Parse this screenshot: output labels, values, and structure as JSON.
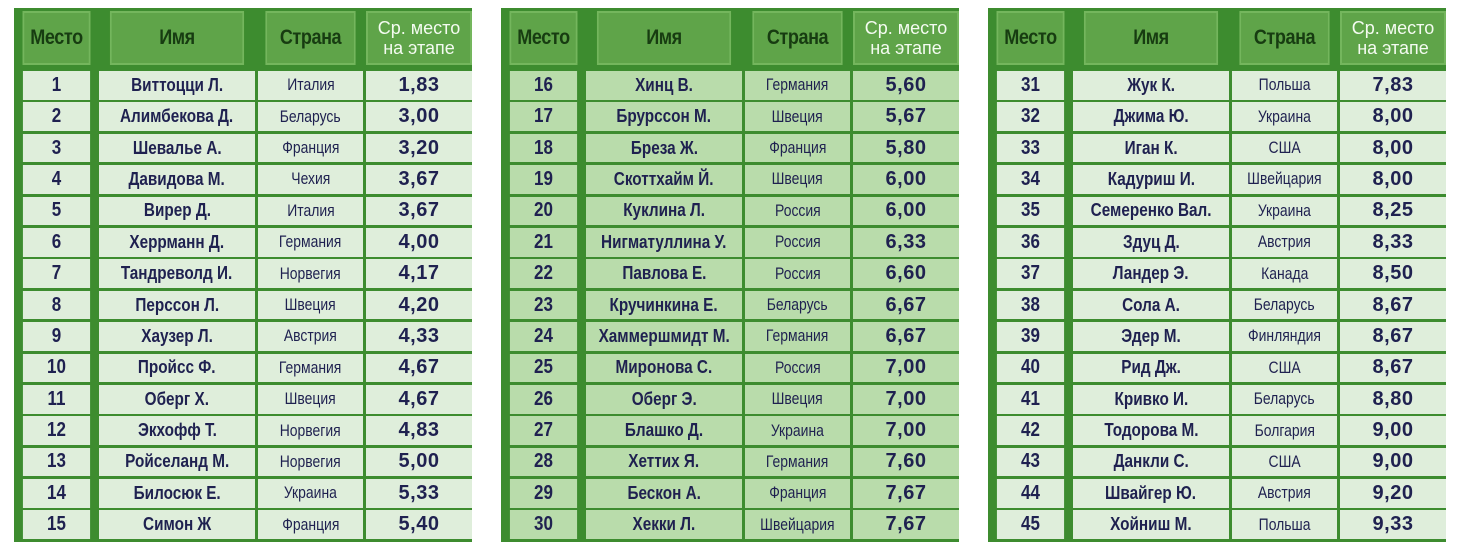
{
  "headers": {
    "place": "Место",
    "name": "Имя",
    "country": "Страна",
    "avg": "Ср. место\nна этапе"
  },
  "colors": {
    "border": "#3d8c2f",
    "header_bg": "#5fa449",
    "row_bg_light": "#dfeedb",
    "row_bg_mid": "#b9dcab",
    "text": "#1f2150"
  },
  "tables": [
    {
      "rows": [
        {
          "place": "1",
          "name": "Виттоцци Л.",
          "country": "Италия",
          "avg": "1,83"
        },
        {
          "place": "2",
          "name": "Алимбекова Д.",
          "country": "Беларусь",
          "avg": "3,00"
        },
        {
          "place": "3",
          "name": "Шевалье А.",
          "country": "Франция",
          "avg": "3,20"
        },
        {
          "place": "4",
          "name": "Давидова М.",
          "country": "Чехия",
          "avg": "3,67"
        },
        {
          "place": "5",
          "name": "Вирер Д.",
          "country": "Италия",
          "avg": "3,67"
        },
        {
          "place": "6",
          "name": "Херрманн Д.",
          "country": "Германия",
          "avg": "4,00"
        },
        {
          "place": "7",
          "name": "Тандреволд И.",
          "country": "Норвегия",
          "avg": "4,17"
        },
        {
          "place": "8",
          "name": "Перссон Л.",
          "country": "Швеция",
          "avg": "4,20"
        },
        {
          "place": "9",
          "name": "Хаузер Л.",
          "country": "Австрия",
          "avg": "4,33"
        },
        {
          "place": "10",
          "name": "Пройсс Ф.",
          "country": "Германия",
          "avg": "4,67"
        },
        {
          "place": "11",
          "name": "Оберг Х.",
          "country": "Швеция",
          "avg": "4,67"
        },
        {
          "place": "12",
          "name": "Экхофф Т.",
          "country": "Норвегия",
          "avg": "4,83"
        },
        {
          "place": "13",
          "name": "Ройселанд М.",
          "country": "Норвегия",
          "avg": "5,00"
        },
        {
          "place": "14",
          "name": "Билосюк Е.",
          "country": "Украина",
          "avg": "5,33"
        },
        {
          "place": "15",
          "name": "Симон Ж",
          "country": "Франция",
          "avg": "5,40"
        }
      ]
    },
    {
      "rows": [
        {
          "place": "16",
          "name": "Хинц В.",
          "country": "Германия",
          "avg": "5,60"
        },
        {
          "place": "17",
          "name": "Брурссон М.",
          "country": "Швеция",
          "avg": "5,67"
        },
        {
          "place": "18",
          "name": "Бреза Ж.",
          "country": "Франция",
          "avg": "5,80"
        },
        {
          "place": "19",
          "name": "Скоттхайм Й.",
          "country": "Швеция",
          "avg": "6,00"
        },
        {
          "place": "20",
          "name": "Куклина Л.",
          "country": "Россия",
          "avg": "6,00"
        },
        {
          "place": "21",
          "name": "Нигматуллина У.",
          "country": "Россия",
          "avg": "6,33"
        },
        {
          "place": "22",
          "name": "Павлова Е.",
          "country": "Россия",
          "avg": "6,60"
        },
        {
          "place": "23",
          "name": "Кручинкина Е.",
          "country": "Беларусь",
          "avg": "6,67"
        },
        {
          "place": "24",
          "name": "Хаммершмидт М.",
          "country": "Германия",
          "avg": "6,67"
        },
        {
          "place": "25",
          "name": "Миронова С.",
          "country": "Россия",
          "avg": "7,00"
        },
        {
          "place": "26",
          "name": "Оберг Э.",
          "country": "Швеция",
          "avg": "7,00"
        },
        {
          "place": "27",
          "name": "Блашко Д.",
          "country": "Украина",
          "avg": "7,00"
        },
        {
          "place": "28",
          "name": "Хеттих Я.",
          "country": "Германия",
          "avg": "7,60"
        },
        {
          "place": "29",
          "name": "Бескон А.",
          "country": "Франция",
          "avg": "7,67"
        },
        {
          "place": "30",
          "name": "Хекки Л.",
          "country": "Швейцария",
          "avg": "7,67"
        }
      ]
    },
    {
      "rows": [
        {
          "place": "31",
          "name": "Жук К.",
          "country": "Польша",
          "avg": "7,83"
        },
        {
          "place": "32",
          "name": "Джима Ю.",
          "country": "Украина",
          "avg": "8,00"
        },
        {
          "place": "33",
          "name": "Иган К.",
          "country": "США",
          "avg": "8,00"
        },
        {
          "place": "34",
          "name": "Кадуриш И.",
          "country": "Швейцария",
          "avg": "8,00"
        },
        {
          "place": "35",
          "name": "Семеренко Вал.",
          "country": "Украина",
          "avg": "8,25"
        },
        {
          "place": "36",
          "name": "Здуц Д.",
          "country": "Австрия",
          "avg": "8,33"
        },
        {
          "place": "37",
          "name": "Ландер Э.",
          "country": "Канада",
          "avg": "8,50"
        },
        {
          "place": "38",
          "name": "Сола А.",
          "country": "Беларусь",
          "avg": "8,67"
        },
        {
          "place": "39",
          "name": "Эдер М.",
          "country": "Финляндия",
          "avg": "8,67"
        },
        {
          "place": "40",
          "name": "Рид Дж.",
          "country": "США",
          "avg": "8,67"
        },
        {
          "place": "41",
          "name": "Кривко И.",
          "country": "Беларусь",
          "avg": "8,80"
        },
        {
          "place": "42",
          "name": "Тодорова М.",
          "country": "Болгария",
          "avg": "9,00"
        },
        {
          "place": "43",
          "name": "Данкли С.",
          "country": "США",
          "avg": "9,00"
        },
        {
          "place": "44",
          "name": "Швайгер Ю.",
          "country": "Австрия",
          "avg": "9,20"
        },
        {
          "place": "45",
          "name": "Хойниш М.",
          "country": "Польша",
          "avg": "9,33"
        }
      ]
    }
  ]
}
